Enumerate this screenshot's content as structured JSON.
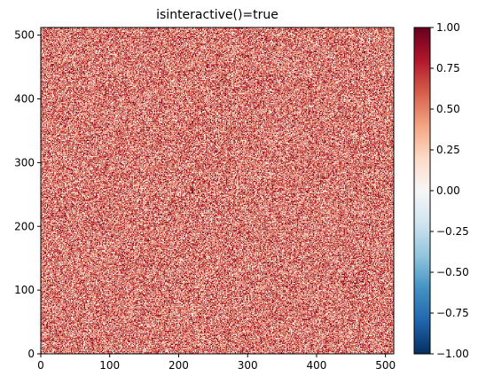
{
  "chart_data": {
    "type": "heatmap",
    "title": "isinteractive()=true",
    "xlabel": "",
    "ylabel": "",
    "xlim": [
      0,
      512
    ],
    "ylim": [
      0,
      512
    ],
    "grid_shape": [
      512,
      512
    ],
    "value_distribution": "uniform random in [0, 1]",
    "colormap": "RdBu_r",
    "colormap_stops": [
      "#053061",
      "#2166ac",
      "#4393c3",
      "#92c5de",
      "#d1e5f0",
      "#f7f7f7",
      "#fddbc7",
      "#f4a582",
      "#d6604d",
      "#b2182b",
      "#67001f"
    ],
    "clim": [
      -1,
      1
    ],
    "x_ticks": [
      0,
      100,
      200,
      300,
      400,
      500
    ],
    "x_tick_labels": [
      "0",
      "100",
      "200",
      "300",
      "400",
      "500"
    ],
    "y_ticks": [
      0,
      100,
      200,
      300,
      400,
      500
    ],
    "y_tick_labels": [
      "0",
      "100",
      "200",
      "300",
      "400",
      "500"
    ],
    "colorbar": {
      "ticks": [
        -1,
        -0.75,
        -0.5,
        -0.25,
        0,
        0.25,
        0.5,
        0.75,
        1
      ],
      "tick_labels": [
        "−1.00",
        "−0.75",
        "−0.50",
        "−0.25",
        "0.00",
        "0.25",
        "0.50",
        "0.75",
        "1.00"
      ]
    },
    "grid": false
  }
}
